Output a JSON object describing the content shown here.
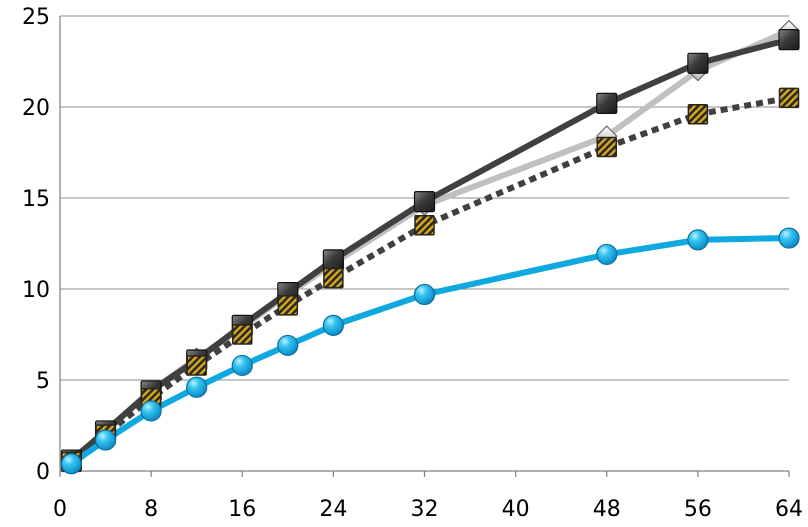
{
  "chart_data": {
    "type": "line",
    "title": "",
    "xlabel": "",
    "ylabel": "",
    "xlim": [
      0,
      64
    ],
    "ylim": [
      0,
      25
    ],
    "x_ticks": [
      0,
      8,
      16,
      24,
      32,
      40,
      48,
      56,
      64
    ],
    "y_ticks": [
      0,
      5,
      10,
      15,
      20,
      25
    ],
    "grid": {
      "horizontal": true,
      "vertical": false
    },
    "legend": "none",
    "series": [
      {
        "color": "#c0c0c0",
        "line_style": "solid",
        "marker": "diamond",
        "x": [
          1,
          4,
          8,
          12,
          16,
          20,
          24,
          32,
          48,
          56,
          64
        ],
        "y": [
          0.5,
          2.2,
          4.4,
          6.2,
          7.9,
          9.7,
          11.4,
          14.6,
          18.4,
          22.0,
          24.2
        ]
      },
      {
        "color": "#404040",
        "line_style": "solid",
        "marker": "square-dark",
        "x": [
          1,
          4,
          8,
          12,
          16,
          20,
          24,
          32,
          48,
          56,
          64
        ],
        "y": [
          0.6,
          2.2,
          4.4,
          6.1,
          8.0,
          9.8,
          11.6,
          14.8,
          20.2,
          22.4,
          23.7
        ]
      },
      {
        "color": "#404040",
        "line_style": "dotted",
        "marker": "square-hatched-gold",
        "x": [
          1,
          4,
          8,
          12,
          16,
          20,
          24,
          32,
          48,
          56,
          64
        ],
        "y": [
          0.5,
          2.0,
          4.0,
          5.8,
          7.5,
          9.1,
          10.6,
          13.5,
          17.8,
          19.6,
          20.5
        ]
      },
      {
        "color": "#0fa8e0",
        "line_style": "solid",
        "marker": "circle",
        "x": [
          1,
          4,
          8,
          12,
          16,
          20,
          24,
          32,
          48,
          56,
          64
        ],
        "y": [
          0.4,
          1.7,
          3.3,
          4.6,
          5.8,
          6.9,
          8.0,
          9.7,
          11.9,
          12.7,
          12.8
        ]
      }
    ]
  }
}
